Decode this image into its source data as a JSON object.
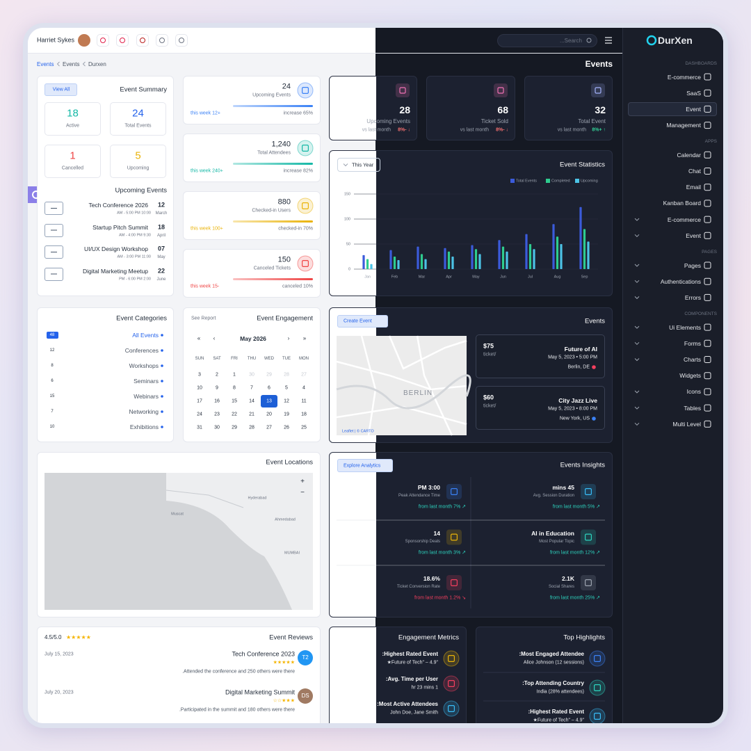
{
  "header": {
    "user": "Harriet Sykes",
    "search_placeholder": "...Search",
    "brand": "DurXen"
  },
  "breadcrumb": [
    "Events",
    "Events",
    "Durxen"
  ],
  "page_title": "Events",
  "sidebar": [
    {
      "title": "DASHBOARDS",
      "items": [
        {
          "label": "E-commerce"
        },
        {
          "label": "SaaS"
        },
        {
          "label": "Event",
          "active": true
        },
        {
          "label": "Management"
        }
      ]
    },
    {
      "title": "APPS",
      "items": [
        {
          "label": "Calendar"
        },
        {
          "label": "Chat"
        },
        {
          "label": "Email"
        },
        {
          "label": "Kanban Board"
        },
        {
          "label": "E-commerce",
          "submenu": true
        },
        {
          "label": "Event",
          "submenu": true
        }
      ]
    },
    {
      "title": "PAGES",
      "items": [
        {
          "label": "Pages",
          "submenu": true
        },
        {
          "label": "Authentications",
          "submenu": true
        },
        {
          "label": "Errors",
          "submenu": true
        }
      ]
    },
    {
      "title": "COMPONENTS",
      "items": [
        {
          "label": "Ui Elements",
          "submenu": true
        },
        {
          "label": "Forms",
          "submenu": true
        },
        {
          "label": "Charts",
          "submenu": true
        },
        {
          "label": "Widgets"
        },
        {
          "label": "Icons",
          "submenu": true
        },
        {
          "label": "Tables",
          "submenu": true
        },
        {
          "label": "Multi Level",
          "submenu": true
        }
      ]
    }
  ],
  "event_summary": {
    "title": "Event Summary",
    "button": "View All",
    "stats": [
      {
        "value": 18,
        "label": "Active",
        "color": "#14b8a6"
      },
      {
        "value": 24,
        "label": "Total Events",
        "color": "#2563eb"
      },
      {
        "value": 1,
        "label": "Cancelled",
        "color": "#ef4444"
      },
      {
        "value": 5,
        "label": "Upcoming",
        "color": "#eab308"
      }
    ]
  },
  "upcoming_events": {
    "title": "Upcoming Events",
    "items": [
      {
        "name": "Tech Conference 2026",
        "time": "AM - 5:00 PM 10:00",
        "day": "12",
        "month": "March"
      },
      {
        "name": "Startup Pitch Summit",
        "time": "AM - 4:00 PM 9:30",
        "day": "18",
        "month": "April"
      },
      {
        "name": "UI/UX Design Workshop",
        "time": "AM - 3:00 PM 11:00",
        "day": "07",
        "month": "May"
      },
      {
        "name": "Digital Marketing Meetup",
        "time": "PM - 6:00 PM 2:00",
        "day": "22",
        "month": "June"
      }
    ]
  },
  "kpis": [
    {
      "value": "24",
      "label": "Upcoming Events",
      "week": "this week 12+",
      "change": "increase 65%",
      "color": "#3b82f6"
    },
    {
      "value": "1,240",
      "label": "Total Attendees",
      "week": "this week 240+",
      "change": "increase 82%",
      "color": "#14b8a6"
    },
    {
      "value": "880",
      "label": "Checked-in Users",
      "week": "this week 100+",
      "change": "checked-in 70%",
      "color": "#eab308"
    },
    {
      "value": "150",
      "label": "Canceled Tickets",
      "week": "this week 15-",
      "change": "canceled 10%",
      "color": "#ef4444"
    }
  ],
  "stat_cards": [
    {
      "value": "28",
      "label": "Upcoming Events",
      "compare": "vs last month",
      "change": "8%- ↓",
      "color": "#f87171"
    },
    {
      "value": "68",
      "label": "Ticket Sold",
      "compare": "vs last month",
      "change": "8%- ↓",
      "color": "#f87171"
    },
    {
      "value": "32",
      "label": "Total Event",
      "compare": "vs last month",
      "change": "8%+ ↑",
      "color": "#34d399"
    }
  ],
  "event_statistics": {
    "type": "bar",
    "title": "Event Statistics",
    "filter": "This Year",
    "categories": [
      "Jan",
      "Feb",
      "Mar",
      "Apr",
      "May",
      "Jun",
      "Jul",
      "Aug",
      "Sep"
    ],
    "series": [
      {
        "name": "Total Events",
        "color": "#3b5bdb",
        "values": [
          28,
          38,
          45,
          42,
          48,
          58,
          70,
          90,
          124
        ]
      },
      {
        "name": "Completed",
        "color": "#2ecc8f",
        "values": [
          20,
          25,
          30,
          35,
          40,
          45,
          50,
          65,
          80
        ]
      },
      {
        "name": "Upcoming",
        "color": "#4cc3e6",
        "values": [
          10,
          18,
          20,
          25,
          30,
          35,
          40,
          50,
          55
        ]
      }
    ],
    "ylim": [
      0,
      150
    ],
    "yticks": [
      0,
      50,
      100,
      150
    ],
    "grid": true
  },
  "event_categories": {
    "title": "Event Categories",
    "items": [
      {
        "count": 48,
        "name": "All Events"
      },
      {
        "count": 12,
        "name": "Conferences"
      },
      {
        "count": 8,
        "name": "Workshops"
      },
      {
        "count": 6,
        "name": "Seminars"
      },
      {
        "count": 15,
        "name": "Webinars"
      },
      {
        "count": 7,
        "name": "Networking"
      },
      {
        "count": 10,
        "name": "Exhibitions"
      }
    ]
  },
  "event_engagement": {
    "title": "Event Engagement",
    "link": "See Report",
    "month": "May 2026",
    "nav": [
      "«",
      "‹",
      "›",
      "»"
    ],
    "weekdays": [
      "SUN",
      "SAT",
      "FRI",
      "THU",
      "WED",
      "TUE",
      "MON"
    ],
    "weeks": [
      [
        {
          "day": 3
        },
        {
          "day": 2
        },
        {
          "day": 1
        },
        {
          "day": 30,
          "other_month": true
        },
        {
          "day": 29,
          "other_month": true
        },
        {
          "day": 28,
          "other_month": true
        },
        {
          "day": 27,
          "other_month": true
        }
      ],
      [
        {
          "day": 10
        },
        {
          "day": 9
        },
        {
          "day": 8
        },
        {
          "day": 7
        },
        {
          "day": 6
        },
        {
          "day": 5
        },
        {
          "day": 4
        }
      ],
      [
        {
          "day": 17
        },
        {
          "day": 16
        },
        {
          "day": 15
        },
        {
          "day": 14
        },
        {
          "day": 13,
          "selected": true
        },
        {
          "day": 12
        },
        {
          "day": 11
        }
      ],
      [
        {
          "day": 24
        },
        {
          "day": 23
        },
        {
          "day": 22
        },
        {
          "day": 21
        },
        {
          "day": 20
        },
        {
          "day": 19
        },
        {
          "day": 18
        }
      ],
      [
        {
          "day": 31
        },
        {
          "day": 30
        },
        {
          "day": 29
        },
        {
          "day": 28
        },
        {
          "day": 27
        },
        {
          "day": 26
        },
        {
          "day": 25
        }
      ]
    ]
  },
  "events": {
    "title": "Events",
    "button": "Create Event",
    "map_label": "BERLIN",
    "attribution": "Leaflet | © CARTO",
    "items": [
      {
        "price": "$75",
        "unit": "ticket/",
        "name": "Future of AI",
        "date": "May 5, 2023 • 5:00 PM",
        "location": "Berlin, DE"
      },
      {
        "price": "$60",
        "unit": "ticket/",
        "name": "City Jazz Live",
        "date": "May 5, 2023 • 8:00 PM",
        "location": "New York, US"
      }
    ]
  },
  "event_locations": {
    "title": "Event Locations",
    "zoom": [
      "+",
      "−"
    ],
    "places": [
      {
        "name": "Hyderabad"
      },
      {
        "name": "Muscat"
      },
      {
        "name": "Ahmedabad"
      },
      {
        "name": "MUMBAI"
      }
    ]
  },
  "events_insights": {
    "title": "Events Insights",
    "button": "Explore Analytics",
    "items": [
      {
        "value": "PM 3:00",
        "label": "Peak Attendance Time",
        "change": "from last month 7% ↗",
        "color": "#3b82f6"
      },
      {
        "value": "mins 45",
        "label": "Avg. Session Duration",
        "change": "from last month 5% ↗",
        "color": "#38bdf8"
      },
      {
        "value": "14",
        "label": "Sponsorship Deals",
        "change": "from last month 3% ↗",
        "color": "#eab308"
      },
      {
        "value": "AI in Education",
        "label": "Most Popular Topic",
        "change": "from last month 12% ↗",
        "color": "#2dd4bf"
      },
      {
        "value": "18.6%",
        "label": "Ticket Conversion Rate",
        "change": "from last month 1.2% ↘",
        "color": "#f43f5e"
      },
      {
        "value": "2.1K",
        "label": "Social Shares",
        "change": "from last month 25% ↗",
        "color": "#9ca3af"
      }
    ]
  },
  "event_reviews": {
    "title": "Event Reviews",
    "rating": "4.5/5.0",
    "rating_stars": "★★★★★",
    "reviews": [
      {
        "date": "July 15, 2023",
        "event": "Tech Conference 2023",
        "stars": "★★★★★",
        "initials": "T2",
        "avatar_color": "#2196f3",
        "text": ".Attended the conference and 250 others were there"
      },
      {
        "date": "July 20, 2023",
        "event": "Digital Marketing Summit",
        "stars": "☆☆★★★",
        "initials": "DS",
        "avatar_color": "#a07a62",
        "text": ".Participated in the summit and 180 others were there"
      }
    ]
  },
  "engagement_metrics": {
    "title": "Engagement Metrics",
    "items": [
      {
        "title": ":Highest Rated Event",
        "detail": "★Future of Tech\" – 4.9\"",
        "color": "#eab308"
      },
      {
        "title": ":Avg. Time per User",
        "detail": "hr 23 mins 1",
        "color": "#f43f5e"
      },
      {
        "title": ":Most Active Attendees",
        "detail": "John Doe, Jane Smith",
        "color": "#38bdf8"
      }
    ]
  },
  "top_highlights": {
    "title": "Top Highlights",
    "items": [
      {
        "title": ":Most Engaged Attendee",
        "detail": "Alice Johnson (12 sessions)",
        "color": "#3b82f6"
      },
      {
        "title": ":Top Attending Country",
        "detail": "India (28% attendees)",
        "color": "#2dd4bf"
      },
      {
        "title": ":Highest Rated Event",
        "detail": "★Future of Tech\" – 4.9\"",
        "color": "#38bdf8"
      }
    ]
  }
}
